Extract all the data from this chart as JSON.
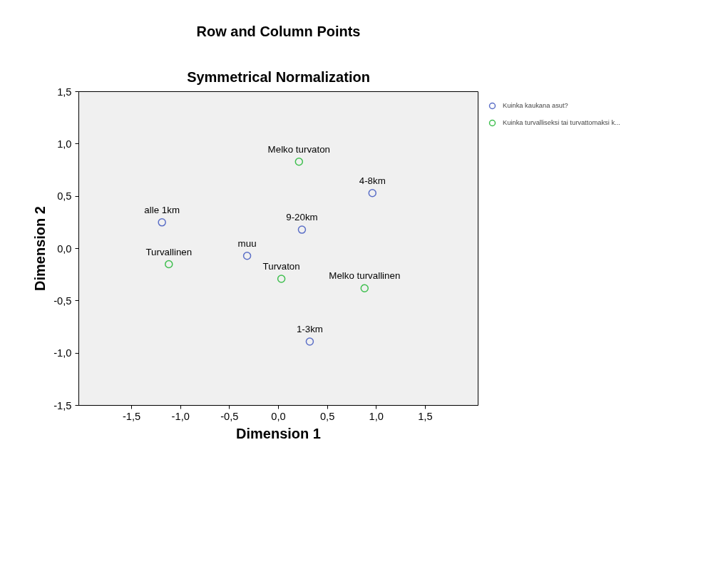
{
  "chart_data": {
    "type": "scatter",
    "title": "Row and Column Points",
    "subtitle": "Symmetrical Normalization",
    "xlabel": "Dimension 1",
    "ylabel": "Dimension 2",
    "xlim": [
      -2.04,
      2.04
    ],
    "ylim": [
      -1.5,
      1.5
    ],
    "xticks": [
      {
        "value": -1.5,
        "label": "-1,5"
      },
      {
        "value": -1.0,
        "label": "-1,0"
      },
      {
        "value": -0.5,
        "label": "-0,5"
      },
      {
        "value": 0,
        "label": "0,0"
      },
      {
        "value": 0.5,
        "label": "0,5"
      },
      {
        "value": 1.0,
        "label": "1,0"
      },
      {
        "value": 1.5,
        "label": "1,5"
      }
    ],
    "yticks": [
      {
        "value": -1.5,
        "label": "-1,5"
      },
      {
        "value": -1.0,
        "label": "-1,0"
      },
      {
        "value": -0.5,
        "label": "-0,5"
      },
      {
        "value": 0,
        "label": "0,0"
      },
      {
        "value": 0.5,
        "label": "0,5"
      },
      {
        "value": 1.0,
        "label": "1,0"
      },
      {
        "value": 1.5,
        "label": "1,5"
      }
    ],
    "grid": false,
    "legend": "top right",
    "marker": "circle",
    "series": [
      {
        "name": "Kuinka kaukana asut?",
        "color": "#5b6fc7",
        "x": [
          -1.19,
          0.96,
          0.24,
          -0.32,
          0.32
        ],
        "values": [
          0.25,
          0.53,
          0.18,
          -0.07,
          -0.89
        ]
      },
      {
        "name": "Kuinka turvalliseksi tai turvattomaksi k...",
        "color": "#3fbf4f",
        "x": [
          0.21,
          -1.12,
          0.03,
          0.88
        ],
        "values": [
          0.83,
          -0.15,
          -0.29,
          -0.38
        ]
      }
    ],
    "annotations": [
      {
        "text": "alle 1km",
        "x": -1.19,
        "y": 0.25
      },
      {
        "text": "4-8km",
        "x": 0.96,
        "y": 0.53
      },
      {
        "text": "9-20km",
        "x": 0.24,
        "y": 0.18
      },
      {
        "text": "muu",
        "x": -0.32,
        "y": -0.07
      },
      {
        "text": "1-3km",
        "x": 0.32,
        "y": -0.89
      },
      {
        "text": "Melko turvaton",
        "x": 0.21,
        "y": 0.83
      },
      {
        "text": "Turvallinen",
        "x": -1.12,
        "y": -0.15
      },
      {
        "text": "Turvaton",
        "x": 0.03,
        "y": -0.29
      },
      {
        "text": "Melko turvallinen",
        "x": 0.88,
        "y": -0.38
      }
    ]
  }
}
